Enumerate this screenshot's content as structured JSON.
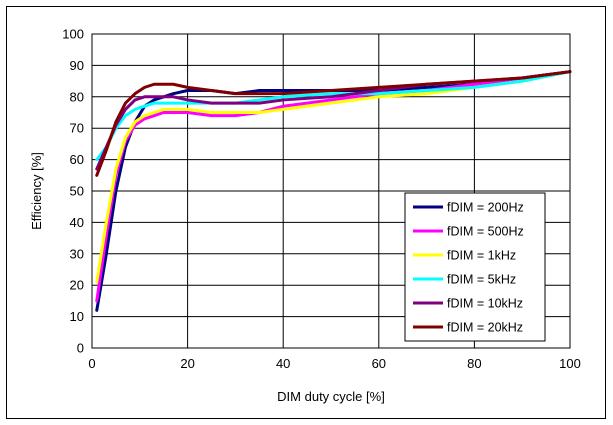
{
  "chart_data": {
    "type": "line",
    "xlabel": "DIM duty cycle [%]",
    "ylabel": "Efficiency [%]",
    "xlim": [
      0,
      100
    ],
    "ylim": [
      0,
      100
    ],
    "xticks": [
      0,
      20,
      40,
      60,
      80,
      100
    ],
    "yticks": [
      0,
      10,
      20,
      30,
      40,
      50,
      60,
      70,
      80,
      90,
      100
    ],
    "grid": "on",
    "legend_position": "right",
    "series": [
      {
        "name": "fDIM = 200Hz",
        "color": "#000080",
        "x": [
          1,
          3,
          5,
          7,
          9,
          11,
          13,
          15,
          17,
          20,
          25,
          30,
          35,
          40,
          50,
          60,
          70,
          80,
          90,
          100
        ],
        "y": [
          12,
          30,
          50,
          64,
          72,
          77,
          79,
          80,
          81,
          82,
          82,
          81,
          82,
          82,
          82,
          82,
          83,
          84,
          86,
          88
        ]
      },
      {
        "name": "fDIM = 500Hz",
        "color": "#ff00ff",
        "x": [
          1,
          3,
          5,
          7,
          9,
          11,
          13,
          15,
          17,
          20,
          25,
          30,
          35,
          40,
          50,
          60,
          70,
          80,
          90,
          100
        ],
        "y": [
          15,
          36,
          55,
          66,
          71,
          73,
          74,
          75,
          75,
          75,
          74,
          74,
          75,
          77,
          79,
          81,
          82,
          84,
          86,
          88
        ]
      },
      {
        "name": "fDIM = 1kHz",
        "color": "#ffff00",
        "x": [
          1,
          3,
          5,
          7,
          9,
          11,
          13,
          15,
          17,
          20,
          25,
          30,
          35,
          40,
          50,
          60,
          70,
          80,
          90,
          100
        ],
        "y": [
          21,
          40,
          57,
          67,
          72,
          74,
          75,
          76,
          76,
          76,
          75,
          75,
          75,
          76,
          78,
          80,
          81,
          83,
          85,
          88
        ]
      },
      {
        "name": "fDIM = 5kHz",
        "color": "#00ffff",
        "x": [
          1,
          3,
          5,
          7,
          9,
          11,
          13,
          15,
          17,
          20,
          25,
          30,
          35,
          40,
          50,
          60,
          70,
          80,
          90,
          100
        ],
        "y": [
          60,
          64,
          70,
          74,
          76,
          77,
          78,
          78,
          78,
          78,
          78,
          78,
          79,
          80,
          81,
          81,
          82,
          83,
          85,
          88
        ]
      },
      {
        "name": "fDIM = 10kHz",
        "color": "#800080",
        "x": [
          1,
          3,
          5,
          7,
          9,
          11,
          13,
          15,
          17,
          20,
          25,
          30,
          35,
          40,
          50,
          60,
          70,
          80,
          90,
          100
        ],
        "y": [
          57,
          64,
          71,
          76,
          79,
          80,
          80,
          80,
          80,
          79,
          78,
          78,
          78,
          79,
          80,
          82,
          84,
          85,
          86,
          88
        ]
      },
      {
        "name": "fDIM = 20kHz",
        "color": "#800000",
        "x": [
          1,
          3,
          5,
          7,
          9,
          11,
          13,
          15,
          17,
          20,
          25,
          30,
          35,
          40,
          50,
          60,
          70,
          80,
          90,
          100
        ],
        "y": [
          55,
          63,
          72,
          78,
          81,
          83,
          84,
          84,
          84,
          83,
          82,
          81,
          81,
          81,
          82,
          83,
          84,
          85,
          86,
          88
        ]
      }
    ]
  }
}
